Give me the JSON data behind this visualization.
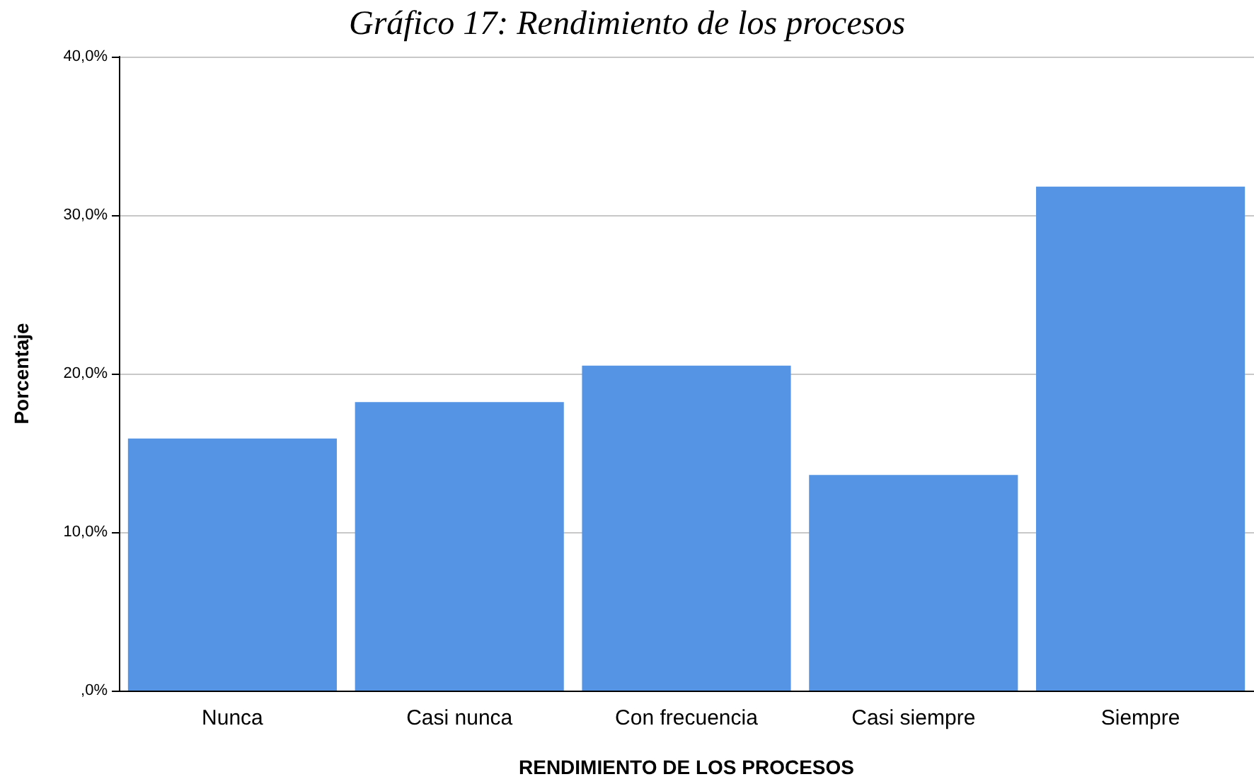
{
  "chart_data": {
    "type": "bar",
    "title": "Gráfico 17: Rendimiento de los procesos",
    "xlabel": "RENDIMIENTO DE LOS PROCESOS",
    "ylabel": "Porcentaje",
    "categories": [
      "Nunca",
      "Casi nunca",
      "Con frecuencia",
      "Casi siempre",
      "Siempre"
    ],
    "values": [
      15.9,
      18.2,
      20.5,
      13.6,
      31.8
    ],
    "color": "#5594e4",
    "ylim": [
      0,
      40
    ],
    "yticks": [
      {
        "value": 0,
        "label": ",0%"
      },
      {
        "value": 10,
        "label": "10,0%"
      },
      {
        "value": 20,
        "label": "20,0%"
      },
      {
        "value": 30,
        "label": "30,0%"
      },
      {
        "value": 40,
        "label": "40,0%"
      }
    ],
    "grid": "y"
  }
}
